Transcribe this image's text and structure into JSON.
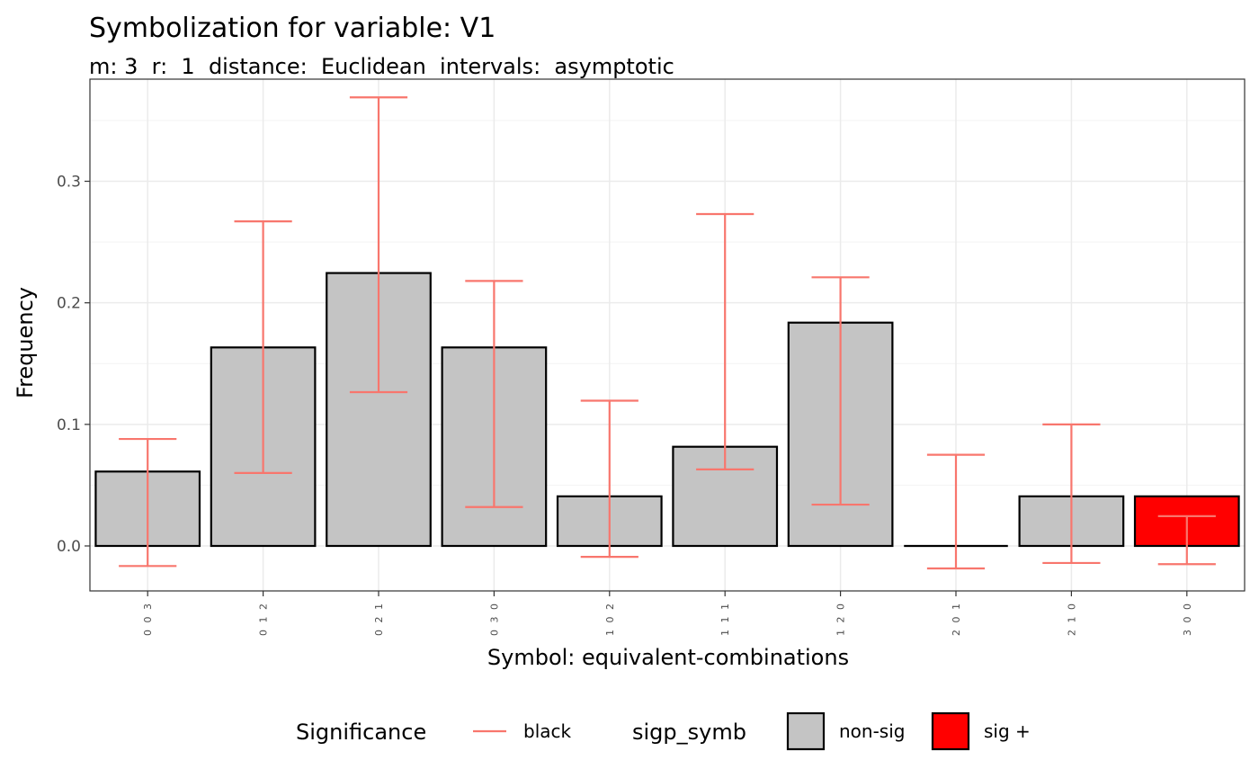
{
  "chart_data": {
    "type": "bar",
    "title": "Symbolization for variable: V1",
    "subtitle": "m: 3  r:  1  distance:  Euclidean  intervals:  asymptotic",
    "xlabel": "Symbol: equivalent-combinations",
    "ylabel": "Frequency",
    "ylim": [
      -0.037,
      0.384
    ],
    "yticks": [
      0.0,
      0.1,
      0.2,
      0.3
    ],
    "ytick_labels": [
      "0.0",
      "0.1",
      "0.2",
      "0.3"
    ],
    "grid": true,
    "categories": [
      "0 0 3",
      "0 1 2",
      "0 2 1",
      "0 3 0",
      "1 0 2",
      "1 1 1",
      "1 2 0",
      "2 0 1",
      "2 1 0",
      "3 0 0"
    ],
    "values": [
      0.0612,
      0.1633,
      0.2245,
      0.1633,
      0.0408,
      0.0816,
      0.1837,
      0.0,
      0.0408,
      0.0408
    ],
    "error_lower": [
      -0.0165,
      0.06,
      0.1265,
      0.032,
      -0.009,
      0.063,
      0.034,
      -0.0185,
      -0.014,
      -0.015
    ],
    "error_upper": [
      0.088,
      0.267,
      0.369,
      0.218,
      0.1195,
      0.273,
      0.221,
      0.075,
      0.1,
      0.0245
    ],
    "significance": [
      "non-sig",
      "non-sig",
      "non-sig",
      "non-sig",
      "non-sig",
      "non-sig",
      "non-sig",
      "non-sig",
      "non-sig",
      "sig +"
    ],
    "colors": {
      "non-sig": "#c4c4c4",
      "sig +": "#ff0000",
      "errorbar": "#f8766d",
      "bar_outline": "#000000"
    },
    "legend": {
      "position": "bottom",
      "groups": [
        {
          "title": "Significance",
          "items": [
            {
              "label": "black",
              "kind": "line",
              "color": "#f8766d"
            }
          ]
        },
        {
          "title": "sigp_symb",
          "items": [
            {
              "label": "non-sig",
              "kind": "box",
              "color": "#c4c4c4"
            },
            {
              "label": "sig +",
              "kind": "box",
              "color": "#ff0000"
            }
          ]
        }
      ]
    }
  }
}
